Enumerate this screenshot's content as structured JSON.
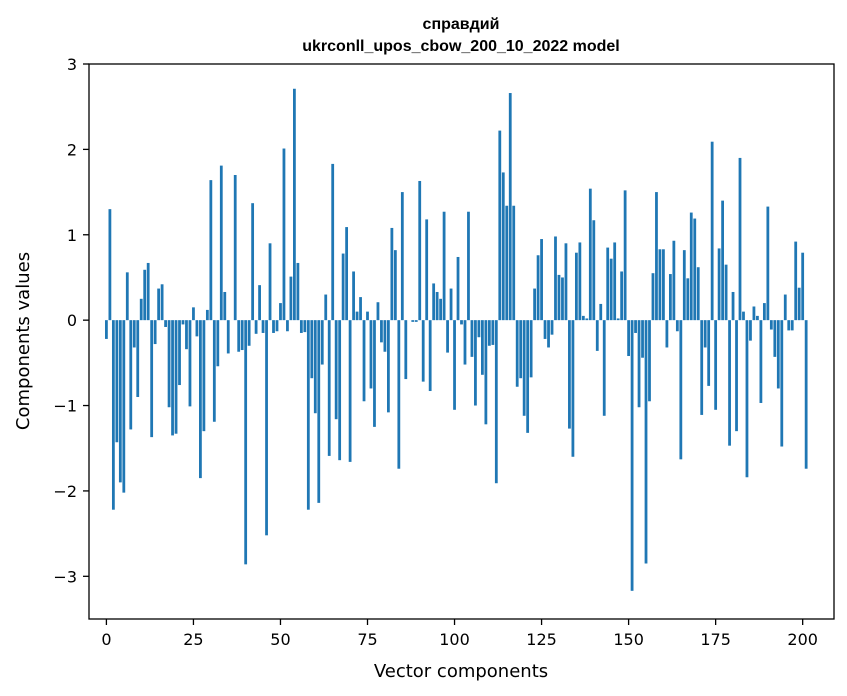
{
  "chart_data": {
    "type": "bar",
    "title_line1": "справдий",
    "title_line2": "ukrconll_upos_cbow_200_10_2022 model",
    "xlabel": "Vector components",
    "ylabel": "Components values",
    "xlim": [
      -5,
      209
    ],
    "ylim": [
      -3.5,
      3
    ],
    "xticks": [
      0,
      25,
      50,
      75,
      100,
      125,
      150,
      175,
      200
    ],
    "xtick_labels": [
      "0",
      "25",
      "50",
      "75",
      "100",
      "125",
      "150",
      "175",
      "200"
    ],
    "yticks": [
      -3,
      -2,
      -1,
      0,
      1,
      2,
      3
    ],
    "ytick_labels": [
      "−3",
      "−2",
      "−1",
      "0",
      "1",
      "2",
      "3"
    ],
    "bar_color": "#1f77b4",
    "grid": false,
    "values": [
      -0.22,
      1.3,
      -2.22,
      -1.43,
      -1.9,
      -2.02,
      0.56,
      -1.28,
      -0.32,
      -0.9,
      0.25,
      0.59,
      0.67,
      -1.37,
      -0.28,
      0.37,
      0.42,
      -0.08,
      -1.02,
      -1.35,
      -1.33,
      -0.76,
      -0.05,
      -0.34,
      -1.01,
      0.15,
      -0.19,
      -1.85,
      -1.3,
      0.12,
      1.64,
      -1.19,
      -0.54,
      1.81,
      0.33,
      -0.39,
      0.0,
      1.7,
      -0.37,
      -0.35,
      -2.86,
      -0.3,
      1.37,
      -0.16,
      0.41,
      -0.15,
      -2.52,
      0.9,
      -0.15,
      -0.13,
      0.2,
      2.01,
      -0.13,
      0.51,
      2.71,
      0.67,
      -0.15,
      -0.14,
      -2.22,
      -0.68,
      -1.09,
      -2.14,
      -0.52,
      0.3,
      -1.59,
      1.83,
      -1.16,
      -1.64,
      0.78,
      1.09,
      -1.66,
      0.57,
      0.1,
      0.27,
      -0.95,
      0.1,
      -0.8,
      -1.25,
      0.21,
      -0.26,
      -0.37,
      -1.08,
      1.08,
      0.82,
      -1.74,
      1.5,
      -0.69,
      0.0,
      -0.02,
      -0.02,
      1.63,
      -0.72,
      1.18,
      -0.83,
      0.43,
      0.33,
      0.25,
      1.27,
      -0.38,
      0.37,
      -1.05,
      0.74,
      -0.05,
      -0.52,
      1.27,
      -0.43,
      -1.0,
      -0.2,
      -0.64,
      -1.22,
      -0.3,
      -0.29,
      -1.91,
      2.22,
      1.73,
      1.34,
      2.66,
      1.34,
      -0.78,
      -0.68,
      -1.12,
      -1.32,
      -0.67,
      0.37,
      0.76,
      0.95,
      -0.22,
      -0.32,
      -0.17,
      0.98,
      0.53,
      0.5,
      0.9,
      -1.27,
      -1.6,
      0.79,
      0.91,
      0.05,
      0.02,
      1.54,
      1.17,
      -0.36,
      0.19,
      -1.12,
      0.85,
      0.72,
      0.91,
      0.02,
      0.57,
      1.52,
      -0.42,
      -3.17,
      -0.15,
      -1.02,
      -0.44,
      -2.85,
      -0.95,
      0.55,
      1.5,
      0.83,
      0.83,
      -0.32,
      0.54,
      0.93,
      -0.13,
      -1.63,
      0.82,
      0.49,
      1.26,
      1.19,
      0.62,
      -1.11,
      -0.32,
      -0.77,
      2.09,
      -1.05,
      0.84,
      1.4,
      0.65,
      -1.47,
      0.33,
      -1.3,
      1.9,
      0.1,
      -1.84,
      -0.24,
      0.16,
      0.05,
      -0.97,
      0.2,
      1.33,
      -0.11,
      -0.43,
      -0.8,
      -1.48,
      0.3,
      -0.12,
      -0.12,
      0.92,
      0.38,
      0.79,
      -1.74
    ]
  }
}
